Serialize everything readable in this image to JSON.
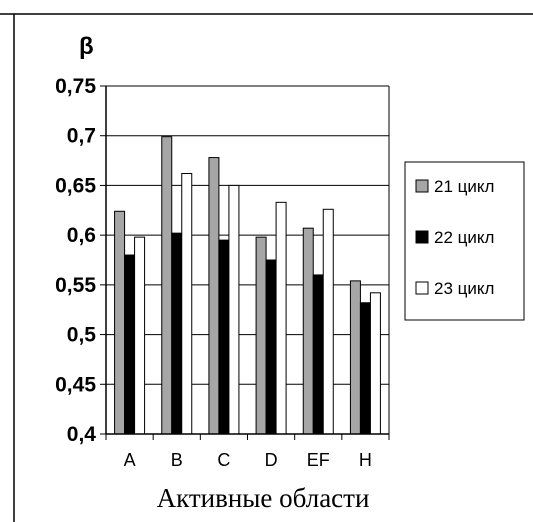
{
  "chart_data": {
    "type": "bar",
    "ylabel": "β",
    "xlabel": "Активные области",
    "categories": [
      "A",
      "B",
      "C",
      "D",
      "EF",
      "H"
    ],
    "series": [
      {
        "name": "21 цикл",
        "color": "#a6a6a6",
        "values": [
          0.624,
          0.699,
          0.678,
          0.598,
          0.607,
          0.554
        ]
      },
      {
        "name": "22 цикл",
        "color": "#000000",
        "values": [
          0.58,
          0.602,
          0.595,
          0.575,
          0.56,
          0.532
        ]
      },
      {
        "name": "23 цикл",
        "color": "#ffffff",
        "values": [
          0.598,
          0.662,
          0.65,
          0.633,
          0.626,
          0.542
        ]
      }
    ],
    "ylim": [
      0.4,
      0.75
    ],
    "yticks": [
      0.4,
      0.45,
      0.5,
      0.55,
      0.6,
      0.65,
      0.7,
      0.75
    ],
    "ytick_labels": [
      "0,4",
      "0,45",
      "0,5",
      "0,55",
      "0,6",
      "0,65",
      "0,7",
      "0,75"
    ],
    "grid": true,
    "legend": "right"
  }
}
